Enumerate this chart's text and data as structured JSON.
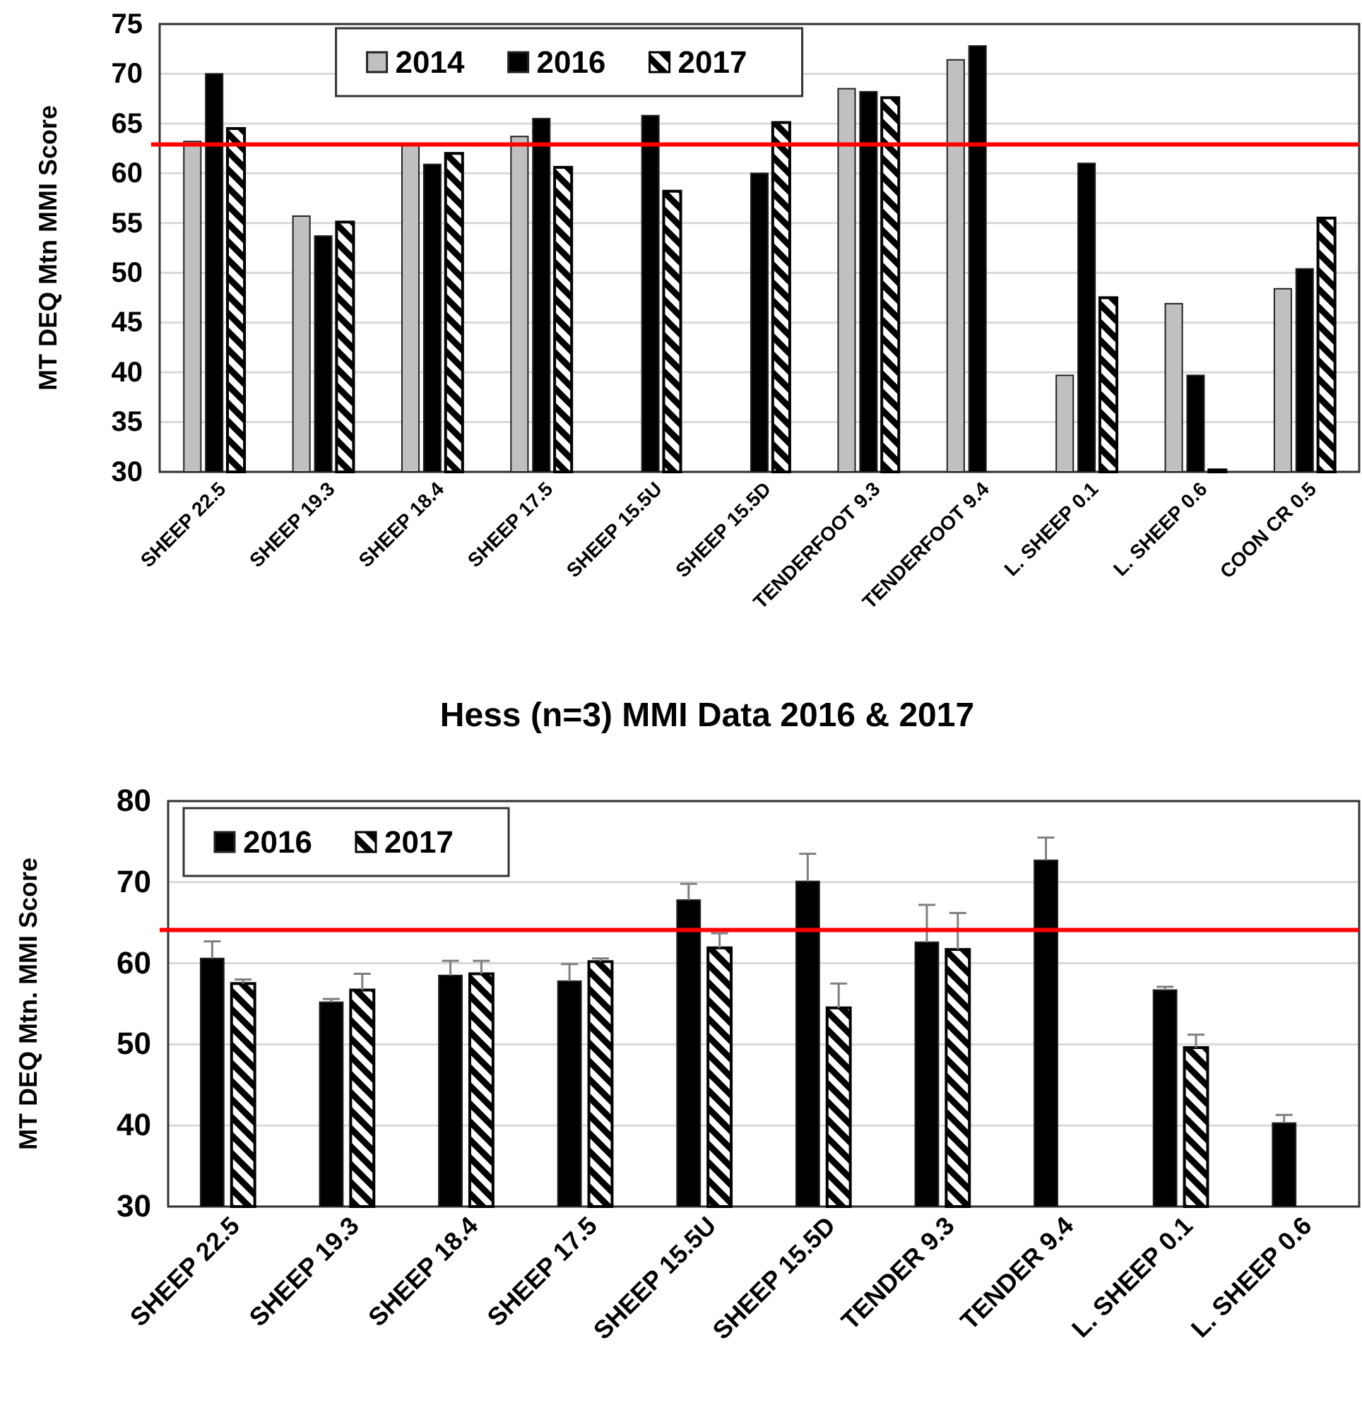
{
  "chart_data": [
    {
      "type": "bar",
      "ylabel": "MT DEQ Mtn  MMI Score",
      "categories": [
        "SHEEP 22.5",
        "SHEEP 19.3",
        "SHEEP 18.4",
        "SHEEP 17.5",
        "SHEEP 15.5U",
        "SHEEP 15.5D",
        "TENDERFOOT 9.3",
        "TENDERFOOT 9.4",
        "L. SHEEP 0.1",
        "L.  SHEEP 0.6",
        "COON CR 0.5"
      ],
      "series": [
        {
          "name": "2014",
          "color": "#c0c0c0",
          "values": [
            63.2,
            55.7,
            62.8,
            63.7,
            null,
            null,
            68.5,
            71.4,
            39.7,
            46.9,
            48.4
          ]
        },
        {
          "name": "2016",
          "color": "#000000",
          "values": [
            70.0,
            53.7,
            60.9,
            65.5,
            65.8,
            60.0,
            68.2,
            72.8,
            61.0,
            39.7,
            50.4
          ]
        },
        {
          "name": "2017",
          "color": "#000000",
          "values": [
            64.5,
            55.1,
            62.0,
            60.6,
            58.2,
            65.1,
            67.6,
            null,
            47.5,
            30.2,
            55.5
          ]
        }
      ],
      "ylim": [
        30,
        75
      ],
      "yticks": [
        30,
        35,
        40,
        45,
        50,
        55,
        60,
        65,
        70,
        75
      ],
      "grid": "y",
      "legend": "top",
      "ref_lines": [
        {
          "axis": "y",
          "value": 62.9,
          "color": "#ff0000"
        }
      ]
    },
    {
      "type": "bar",
      "title": "Hess (n=3) MMI Data 2016 & 2017",
      "ylabel": "MT DEQ Mtn. MMI Score",
      "categories": [
        "SHEEP 22.5",
        "SHEEP 19.3",
        "SHEEP 18.4",
        "SHEEP 17.5",
        "SHEEP 15.5U",
        "SHEEP 15.5D",
        "TENDER 9.3",
        "TENDER 9.4",
        "L. SHEEP 0.1",
        "L. SHEEP 0.6"
      ],
      "series": [
        {
          "name": "2016",
          "color": "#000000",
          "values": [
            60.6,
            55.2,
            58.5,
            57.8,
            67.8,
            70.1,
            62.6,
            72.7,
            56.7,
            40.3
          ],
          "errors": [
            [
              60.6,
              62.7
            ],
            [
              55.2,
              55.6
            ],
            [
              58.5,
              60.3
            ],
            [
              57.8,
              59.9
            ],
            [
              67.8,
              69.8
            ],
            [
              70.1,
              73.5
            ],
            [
              62.6,
              67.2
            ],
            [
              72.7,
              75.5
            ],
            [
              56.7,
              57.1
            ],
            [
              40.3,
              41.3
            ]
          ]
        },
        {
          "name": "2017",
          "color": "#000000",
          "values": [
            57.5,
            56.7,
            58.7,
            60.2,
            61.9,
            54.5,
            61.7,
            null,
            49.6,
            null
          ],
          "errors": [
            [
              57.5,
              58.0
            ],
            [
              56.7,
              58.7
            ],
            [
              58.7,
              60.3
            ],
            [
              60.2,
              60.6
            ],
            [
              61.9,
              63.7
            ],
            [
              54.5,
              57.5
            ],
            [
              61.7,
              66.2
            ],
            null,
            [
              49.6,
              51.2
            ],
            null
          ]
        }
      ],
      "ylim": [
        30,
        80
      ],
      "yticks": [
        30,
        40,
        50,
        60,
        70,
        80
      ],
      "grid": "y",
      "legend": "top left",
      "ref_lines": [
        {
          "axis": "y",
          "value": 64.1,
          "color": "#ff0000"
        }
      ]
    }
  ]
}
